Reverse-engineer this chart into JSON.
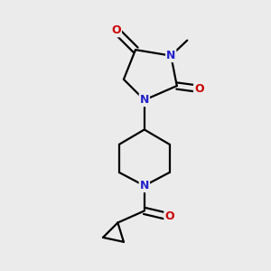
{
  "bg_color": "#ebebeb",
  "atom_color_N": "#2222cc",
  "atom_color_O": "#cc0000",
  "bond_color": "#000000",
  "bond_width": 1.6,
  "font_size_atom": 9,
  "fig_width": 3.0,
  "fig_height": 3.0,
  "dpi": 100,
  "xlim": [
    0.05,
    0.95
  ],
  "ylim": [
    0.05,
    0.95
  ]
}
